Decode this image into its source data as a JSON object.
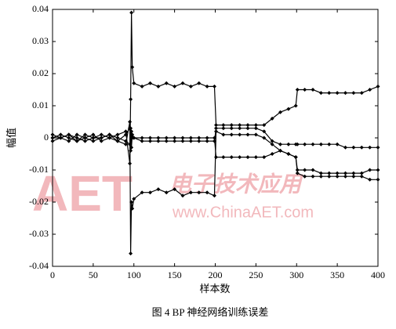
{
  "chart_data": {
    "type": "line",
    "caption": "图 4   BP 神经网络训练误差",
    "xlabel": "样本数",
    "ylabel": "幅值",
    "watermark": {
      "logo": "AET",
      "slogan": "电子技术应用",
      "url": "www.ChinaAET.com"
    },
    "x": [
      0,
      10,
      20,
      30,
      40,
      50,
      60,
      70,
      80,
      90,
      95,
      96,
      97,
      98,
      100,
      110,
      120,
      130,
      140,
      150,
      160,
      170,
      180,
      190,
      199,
      201,
      210,
      220,
      230,
      240,
      250,
      260,
      270,
      280,
      290,
      299,
      301,
      310,
      320,
      330,
      340,
      350,
      360,
      370,
      380,
      390,
      400
    ],
    "series": [
      {
        "color": "#000000",
        "values": [
          0.001,
          0,
          -0.001,
          0.001,
          0,
          0.001,
          -0.001,
          0,
          0.001,
          0.002,
          -0.008,
          0.012,
          0.039,
          0.022,
          0.017,
          0.016,
          0.017,
          0.016,
          0.017,
          0.016,
          0.017,
          0.016,
          0.017,
          0.016,
          0.016,
          0.004,
          0.004,
          0.004,
          0.004,
          0.004,
          0.004,
          0.004,
          0.006,
          0.008,
          0.009,
          0.01,
          0.015,
          0.015,
          0.015,
          0.014,
          0.014,
          0.014,
          0.014,
          0.014,
          0.014,
          0.015,
          0.016
        ]
      },
      {
        "color": "#000000",
        "values": [
          -0.001,
          0,
          0.001,
          -0.001,
          0,
          -0.001,
          0,
          0.001,
          -0.001,
          -0.002,
          0.005,
          -0.036,
          -0.02,
          -0.022,
          -0.019,
          -0.017,
          -0.017,
          -0.016,
          -0.017,
          -0.016,
          -0.018,
          -0.017,
          -0.017,
          -0.017,
          -0.018,
          0.002,
          0.001,
          0.001,
          0.001,
          0.001,
          0.001,
          0,
          -0.002,
          -0.004,
          -0.005,
          -0.006,
          -0.011,
          -0.012,
          -0.012,
          -0.012,
          -0.012,
          -0.012,
          -0.012,
          -0.012,
          -0.012,
          -0.013,
          -0.013
        ]
      },
      {
        "color": "#000000",
        "values": [
          0,
          0.001,
          0,
          -0.001,
          0.001,
          0,
          0.001,
          0,
          -0.001,
          0.001,
          0.003,
          -0.004,
          0.002,
          0,
          0,
          -0.001,
          -0.001,
          -0.001,
          -0.001,
          -0.001,
          -0.001,
          -0.001,
          -0.001,
          -0.001,
          -0.001,
          0.003,
          0.003,
          0.003,
          0.003,
          0.003,
          0.003,
          0.002,
          -0.001,
          -0.002,
          -0.002,
          -0.002,
          -0.002,
          -0.002,
          -0.002,
          -0.002,
          -0.002,
          -0.002,
          -0.003,
          -0.003,
          -0.003,
          -0.003,
          -0.003
        ]
      },
      {
        "color": "#000000",
        "values": [
          0,
          0,
          0.001,
          0,
          -0.001,
          0,
          0,
          0.001,
          0,
          -0.001,
          -0.002,
          0.003,
          -0.003,
          0.001,
          0,
          0,
          0,
          0,
          0,
          0,
          0,
          0,
          0,
          0,
          0,
          -0.006,
          -0.006,
          -0.006,
          -0.006,
          -0.006,
          -0.006,
          -0.006,
          -0.005,
          -0.004,
          -0.005,
          -0.006,
          -0.01,
          -0.01,
          -0.01,
          -0.011,
          -0.011,
          -0.011,
          -0.011,
          -0.011,
          -0.011,
          -0.01,
          -0.01
        ]
      }
    ],
    "xlim": [
      0,
      400
    ],
    "xticks": [
      0,
      50,
      100,
      150,
      200,
      250,
      300,
      350,
      400
    ],
    "ylim": [
      -0.04,
      0.04
    ],
    "yticks": [
      -0.04,
      -0.03,
      -0.02,
      -0.01,
      0,
      0.01,
      0.02,
      0.03,
      0.04
    ]
  }
}
